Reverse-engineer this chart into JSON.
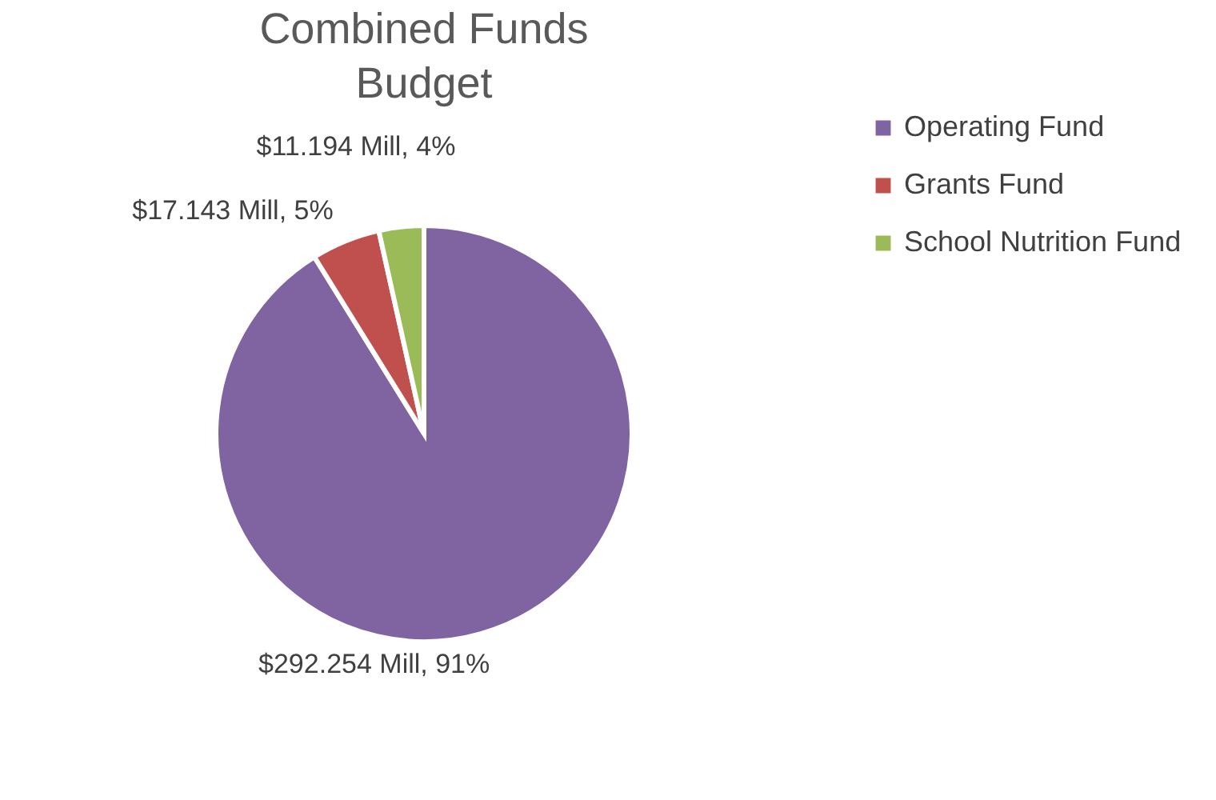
{
  "chart_data": {
    "type": "pie",
    "title": "Combined Funds Budget",
    "categories": [
      "Operating Fund",
      "Grants Fund",
      "School Nutrition Fund"
    ],
    "values": [
      292.254,
      17.143,
      11.194
    ],
    "colors": [
      "#8064a2",
      "#c0504d",
      "#9bbb59"
    ],
    "value_labels": [
      "$292.254 Mill, 91%",
      "$17.143 Mill, 5%",
      "$11.194 Mill, 4%"
    ],
    "legend": "right"
  }
}
